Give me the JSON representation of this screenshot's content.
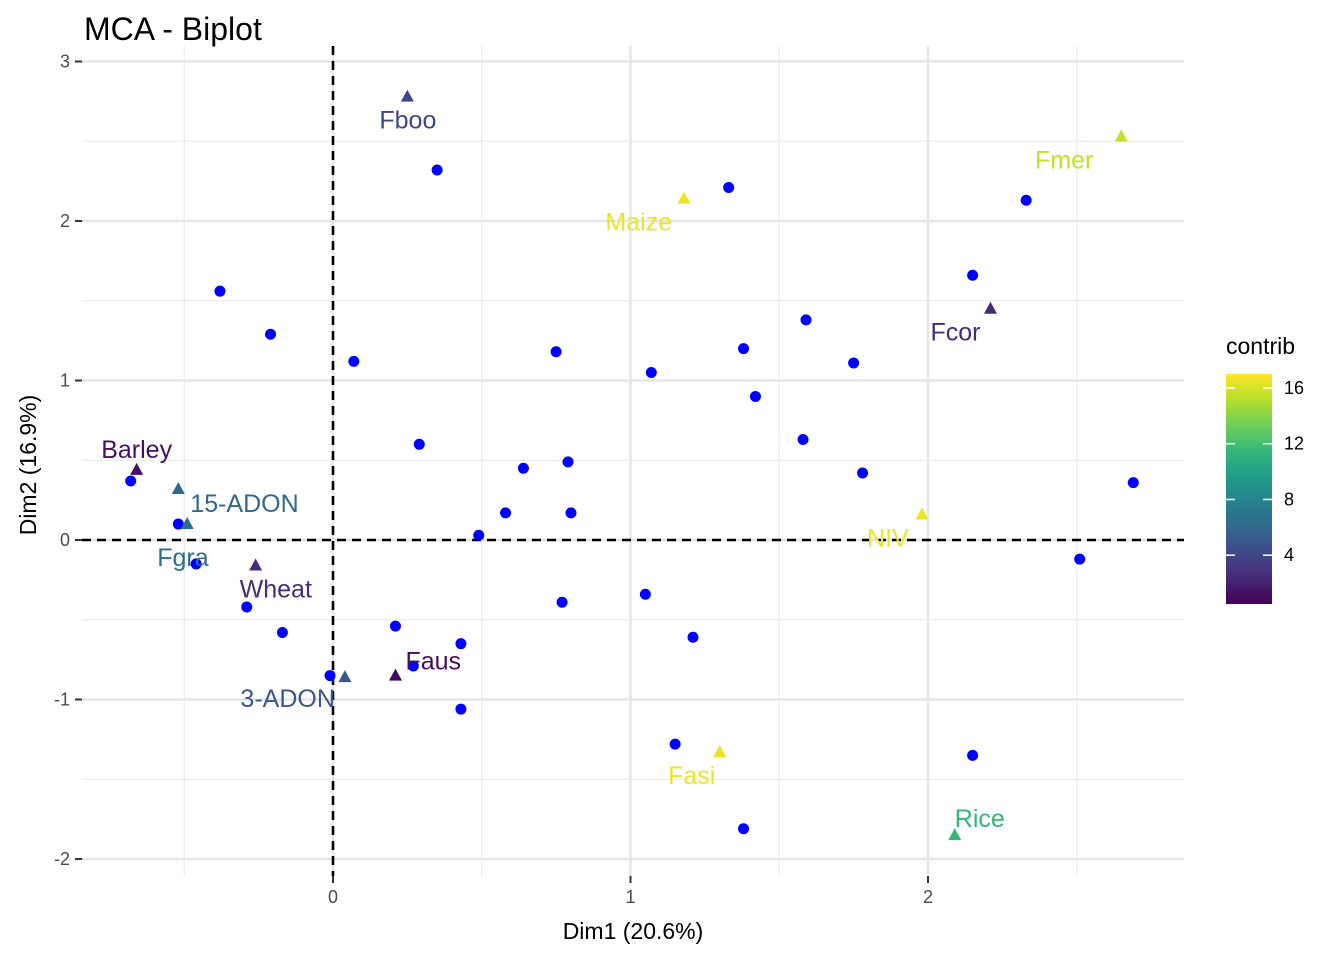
{
  "chart_data": {
    "type": "scatter",
    "title": "MCA - Biplot",
    "xlabel": "Dim1 (20.6%)",
    "ylabel": "Dim2 (16.9%)",
    "xlim": [
      -0.85,
      2.85
    ],
    "ylim": [
      -2.1,
      3.05
    ],
    "x_ticks": [
      0,
      1,
      2
    ],
    "y_ticks": [
      3,
      2,
      1,
      0,
      -1,
      -2
    ],
    "grid": true,
    "reference_lines": {
      "x": 0,
      "y": 0,
      "style": "dashed"
    },
    "individuals": {
      "color": "#0000FF",
      "points": [
        [
          0.35,
          2.32
        ],
        [
          1.33,
          2.21
        ],
        [
          2.33,
          2.13
        ],
        [
          -0.38,
          1.56
        ],
        [
          -0.21,
          1.29
        ],
        [
          2.15,
          1.66
        ],
        [
          1.59,
          1.38
        ],
        [
          0.07,
          1.12
        ],
        [
          0.75,
          1.18
        ],
        [
          1.38,
          1.2
        ],
        [
          1.75,
          1.11
        ],
        [
          1.07,
          1.05
        ],
        [
          1.42,
          0.9
        ],
        [
          0.29,
          0.6
        ],
        [
          1.58,
          0.63
        ],
        [
          0.64,
          0.45
        ],
        [
          0.79,
          0.49
        ],
        [
          1.78,
          0.42
        ],
        [
          2.69,
          0.36
        ],
        [
          -0.68,
          0.37
        ],
        [
          -0.52,
          0.1
        ],
        [
          0.58,
          0.17
        ],
        [
          0.8,
          0.17
        ],
        [
          0.49,
          0.03
        ],
        [
          -0.46,
          -0.15
        ],
        [
          2.51,
          -0.12
        ],
        [
          -0.29,
          -0.42
        ],
        [
          0.77,
          -0.39
        ],
        [
          1.05,
          -0.34
        ],
        [
          -0.17,
          -0.58
        ],
        [
          0.21,
          -0.54
        ],
        [
          1.21,
          -0.61
        ],
        [
          0.43,
          -0.65
        ],
        [
          0.27,
          -0.79
        ],
        [
          -0.01,
          -0.85
        ],
        [
          0.43,
          -1.06
        ],
        [
          1.15,
          -1.28
        ],
        [
          2.15,
          -1.35
        ],
        [
          1.38,
          -1.81
        ]
      ]
    },
    "categories": [
      {
        "label": "Fboo",
        "x": 0.25,
        "y": 2.78,
        "contrib": 4.0
      },
      {
        "label": "Fmer",
        "x": 2.65,
        "y": 2.53,
        "contrib": 15.5
      },
      {
        "label": "Maize",
        "x": 1.18,
        "y": 2.14,
        "contrib": 16.5
      },
      {
        "label": "Fcor",
        "x": 2.21,
        "y": 1.45,
        "contrib": 2.5
      },
      {
        "label": "Barley",
        "x": -0.66,
        "y": 0.44,
        "contrib": 1.2
      },
      {
        "label": "15-ADON",
        "x": -0.52,
        "y": 0.32,
        "contrib": 6.0
      },
      {
        "label": "Fgra",
        "x": -0.49,
        "y": 0.1,
        "contrib": 6.5
      },
      {
        "label": "NIV",
        "x": 1.98,
        "y": 0.16,
        "contrib": 16.5
      },
      {
        "label": "Wheat",
        "x": -0.26,
        "y": -0.16,
        "contrib": 2.5
      },
      {
        "label": "Faus",
        "x": 0.21,
        "y": -0.85,
        "contrib": 1.0
      },
      {
        "label": "3-ADON",
        "x": 0.04,
        "y": -0.86,
        "contrib": 5.0
      },
      {
        "label": "Fasi",
        "x": 1.3,
        "y": -1.33,
        "contrib": 16.5
      },
      {
        "label": "Rice",
        "x": 2.09,
        "y": -1.85,
        "contrib": 11.5
      }
    ],
    "legend": {
      "title": "contrib",
      "position": "right",
      "range": [
        0.5,
        17
      ],
      "ticks": [
        4,
        8,
        12,
        16
      ],
      "colormap": "viridis"
    }
  }
}
